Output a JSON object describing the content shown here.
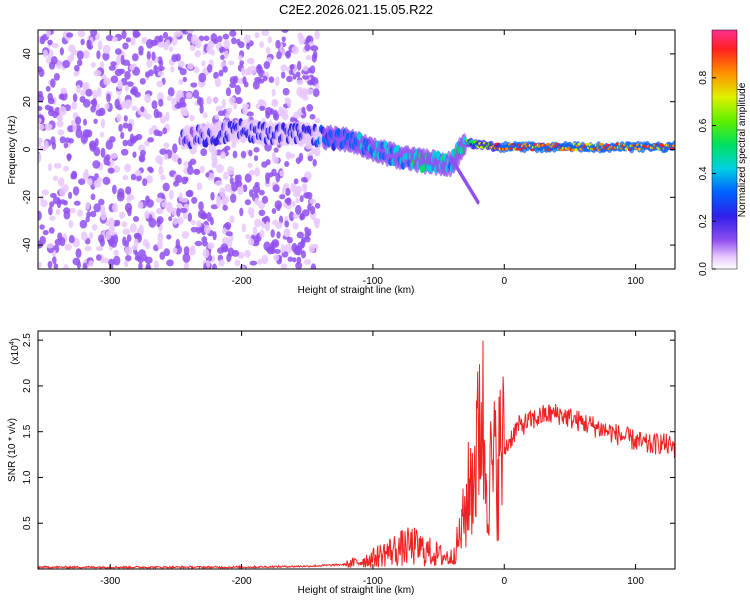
{
  "title": "C2E2.2026.021.15.05.R22",
  "chart_data": [
    {
      "type": "heatmap",
      "xlabel": "Height of straight line (km)",
      "ylabel": "Frequency (Hz)",
      "xlim": [
        -355,
        130
      ],
      "ylim": [
        -50,
        50
      ],
      "x_ticks": [
        -300,
        -200,
        -100,
        0,
        100
      ],
      "y_ticks": [
        -40,
        -20,
        0,
        20,
        40
      ],
      "colorbar": {
        "label": "Normalized spectral amplitude",
        "range": [
          0.0,
          1.0
        ],
        "ticks": [
          0.0,
          0.2,
          0.4,
          0.6,
          0.8
        ]
      },
      "features": [
        {
          "name": "noise",
          "x_range": [
            -355,
            -142
          ],
          "freq_range": [
            -50,
            50
          ],
          "amplitude": 0.2
        },
        {
          "name": "signal-band",
          "x": [
            -240,
            -200,
            -150,
            -120,
            -100,
            -80,
            -60,
            -40,
            -30,
            0,
            50,
            100,
            130
          ],
          "freq": [
            5,
            8,
            6,
            4,
            0,
            -3,
            -5,
            -6,
            3,
            1,
            1,
            1,
            1
          ],
          "amplitude": [
            0.25,
            0.3,
            0.3,
            0.4,
            0.45,
            0.5,
            0.55,
            0.5,
            0.6,
            0.95,
            0.95,
            0.95,
            0.95
          ]
        },
        {
          "name": "branch",
          "x": [
            -40,
            -20
          ],
          "freq": [
            -4,
            -22
          ],
          "amplitude": 0.2
        }
      ]
    },
    {
      "type": "line",
      "xlabel": "Height of straight line (km)",
      "ylabel": "SNR (10 * v/v)",
      "y_scale_label": "(x10^4)",
      "y_scale_base": "(x10",
      "y_scale_exp": "4",
      "xlim": [
        -355,
        130
      ],
      "ylim": [
        0,
        2.6
      ],
      "x_ticks": [
        -300,
        -200,
        -100,
        0,
        100
      ],
      "y_ticks": [
        0.5,
        1.0,
        1.5,
        2.0,
        2.5
      ],
      "series": [
        {
          "name": "SNR",
          "color": "#ee2222",
          "x": [
            -355,
            -300,
            -200,
            -150,
            -120,
            -110,
            -100,
            -90,
            -80,
            -70,
            -60,
            -50,
            -40,
            -35,
            -30,
            -25,
            -20,
            -18,
            -15,
            -10,
            -5,
            0,
            10,
            20,
            30,
            40,
            50,
            60,
            70,
            80,
            90,
            100,
            110,
            120,
            130
          ],
          "y": [
            0.02,
            0.02,
            0.02,
            0.03,
            0.05,
            0.08,
            0.12,
            0.18,
            0.22,
            0.25,
            0.2,
            0.15,
            0.12,
            0.3,
            0.6,
            1.0,
            1.3,
            2.1,
            1.2,
            1.0,
            1.2,
            1.3,
            1.55,
            1.62,
            1.68,
            1.7,
            1.65,
            1.6,
            1.55,
            1.5,
            1.45,
            1.4,
            1.35,
            1.38,
            1.32
          ]
        }
      ]
    }
  ]
}
